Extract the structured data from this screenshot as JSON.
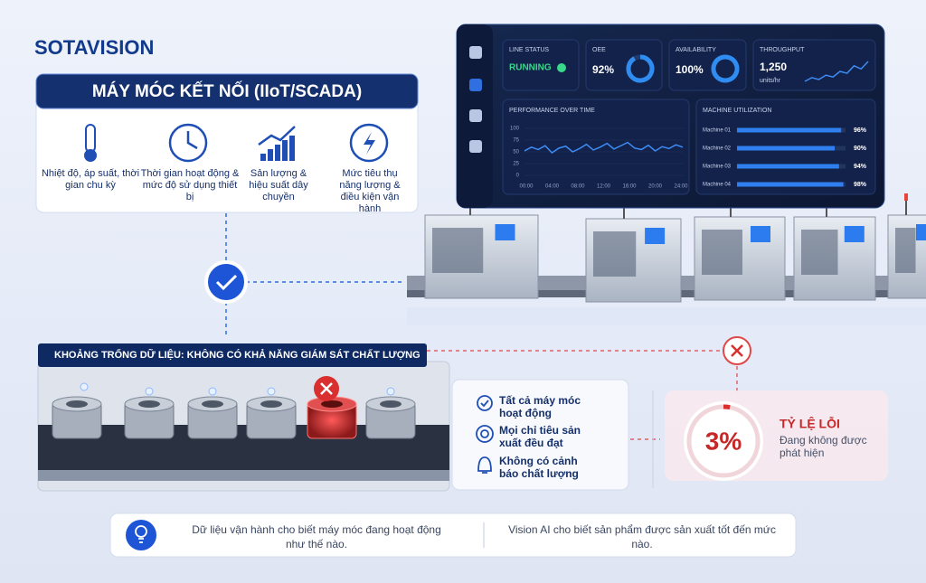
{
  "logo": "SOTAVISION",
  "connected": {
    "title": "MÁY MÓC KẾT NỐI (IIoT/SCADA)",
    "items": [
      "Nhiệt độ, áp suất, thời gian chu kỳ",
      "Thời gian hoạt động & mức độ sử dụng thiết bị",
      "Sản lượng & hiệu suất dây chuyền",
      "Mức tiêu thụ năng lượng & điều kiện vận hành"
    ]
  },
  "dashboard": {
    "line_status": {
      "title": "LINE STATUS",
      "value": "RUNNING"
    },
    "oee": {
      "title": "OEE",
      "value": 92,
      "label": "92%"
    },
    "availability": {
      "title": "AVAILABILITY",
      "value": 100,
      "label": "100%"
    },
    "throughput": {
      "title": "THROUGHPUT",
      "value": 1250,
      "label": "1,250",
      "unit": "units/hr",
      "trend": [
        20,
        26,
        23,
        30,
        27,
        36,
        33,
        45,
        40,
        52
      ]
    },
    "performance": {
      "type": "line",
      "title": "PERFORMANCE OVER TIME",
      "ylim": [
        0,
        100
      ],
      "yticks": [
        0,
        25,
        50,
        75,
        100
      ],
      "xticks": [
        "00:00",
        "04:00",
        "08:00",
        "12:00",
        "16:00",
        "20:00",
        "24:00"
      ],
      "values": [
        52,
        60,
        55,
        63,
        48,
        58,
        62,
        50,
        57,
        66,
        54,
        60,
        68,
        56,
        63,
        70,
        58,
        55,
        64,
        52,
        61,
        57,
        65,
        60
      ]
    },
    "utilization": {
      "type": "bar",
      "title": "MACHINE UTILIZATION",
      "categories": [
        "Machine 01",
        "Machine 02",
        "Machine 03",
        "Machine 04"
      ],
      "values": [
        96,
        90,
        94,
        98
      ],
      "value_labels": [
        "96%",
        "90%",
        "94%",
        "98%"
      ]
    }
  },
  "gap": {
    "title": "KHOẢNG TRỐNG DỮ LIỆU: KHÔNG CÓ KHẢ NĂNG GIÁM SÁT CHẤT LƯỢNG",
    "items": [
      "Tất cả máy móc hoạt động",
      "Mọi chỉ tiêu sản xuất đều đạt",
      "Không có cảnh báo chất lượng"
    ]
  },
  "defect": {
    "value": 3,
    "label": "3%",
    "title": "TỶ LỆ LỖI",
    "subtitle": "Đang không được phát hiện"
  },
  "footer": {
    "left": "Dữ liệu vận hành cho biết máy móc đang hoạt động như thế nào.",
    "right": "Vision AI cho biết sản phẩm được sản xuất tốt đến mức nào."
  }
}
